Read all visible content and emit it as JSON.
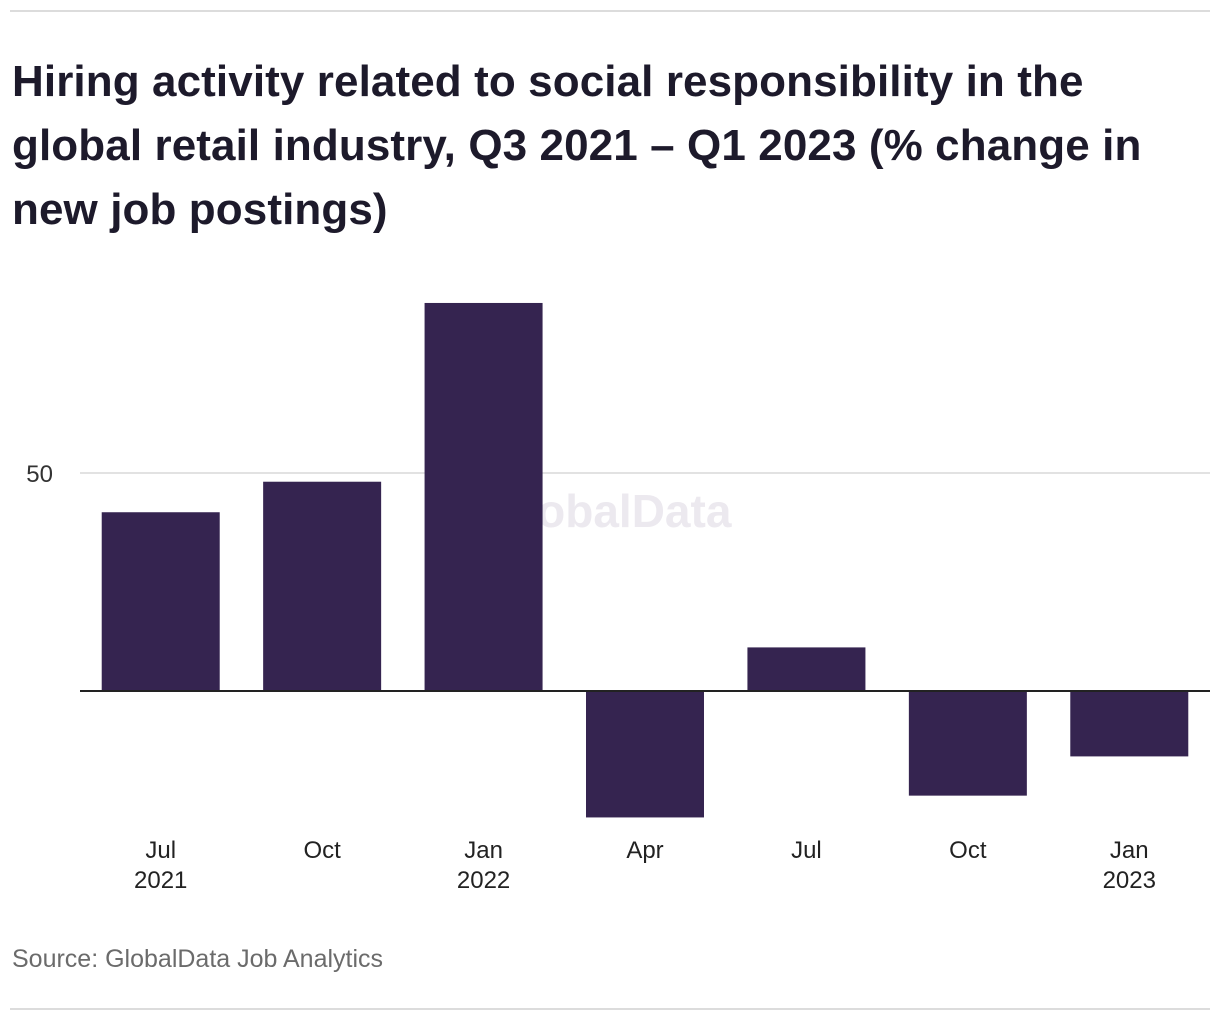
{
  "title": "Hiring activity related to social responsibility in the global retail industry, Q3 2021 – Q1 2023 (% change in new job postings)",
  "source": "Source: GlobalData Job Analytics",
  "watermark": "GlobalData",
  "colors": {
    "bar": "#352450",
    "grid": "#d9d9d9",
    "zero_line": "#222222",
    "watermark": "#ece9ef"
  },
  "chart_data": {
    "type": "bar",
    "title": "Hiring activity related to social responsibility in the global retail industry, Q3 2021 – Q1 2023 (% change in new job postings)",
    "xlabel": "",
    "ylabel": "",
    "categories": [
      [
        "Jul",
        "2021"
      ],
      [
        "Oct",
        ""
      ],
      [
        "Jan",
        "2022"
      ],
      [
        "Apr",
        ""
      ],
      [
        "Jul",
        ""
      ],
      [
        "Oct",
        ""
      ],
      [
        "Jan",
        "2023"
      ]
    ],
    "values": [
      41,
      48,
      89,
      -29,
      10,
      -24,
      -15
    ],
    "ylim": [
      -35,
      97
    ],
    "yticks": [
      50
    ],
    "grid": true,
    "legend": "none"
  }
}
